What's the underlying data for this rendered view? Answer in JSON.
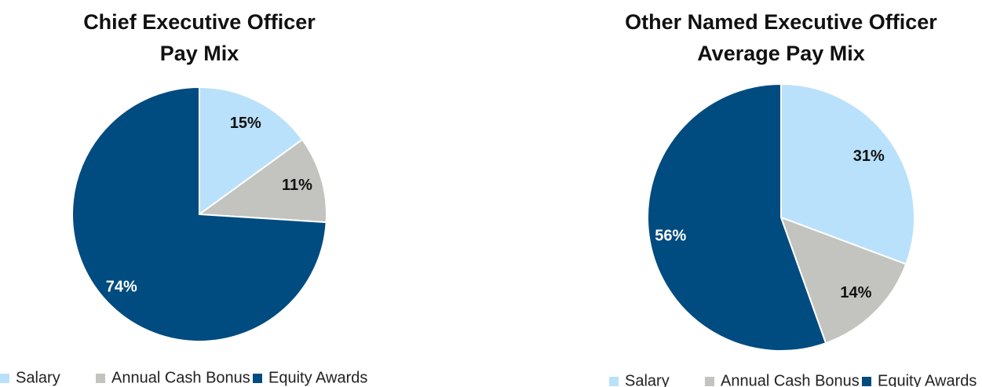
{
  "chart_data": [
    {
      "type": "pie",
      "title": [
        "Chief Executive Officer",
        "Pay Mix"
      ],
      "categories": [
        "Salary",
        "Annual Cash Bonus",
        "Equity Awards"
      ],
      "values": [
        15,
        11,
        74
      ],
      "value_labels": [
        "15%",
        "11%",
        "74%"
      ],
      "colors": [
        "#b9e1fb",
        "#c3c3bf",
        "#004b7f"
      ]
    },
    {
      "type": "pie",
      "title": [
        "Other Named Executive Officer",
        "Average Pay Mix"
      ],
      "categories": [
        "Salary",
        "Annual Cash Bonus",
        "Equity Awards"
      ],
      "values": [
        31,
        14,
        56
      ],
      "value_labels": [
        "31%",
        "14%",
        "56%"
      ],
      "colors": [
        "#b9e1fb",
        "#c3c3bf",
        "#004b7f"
      ]
    }
  ]
}
